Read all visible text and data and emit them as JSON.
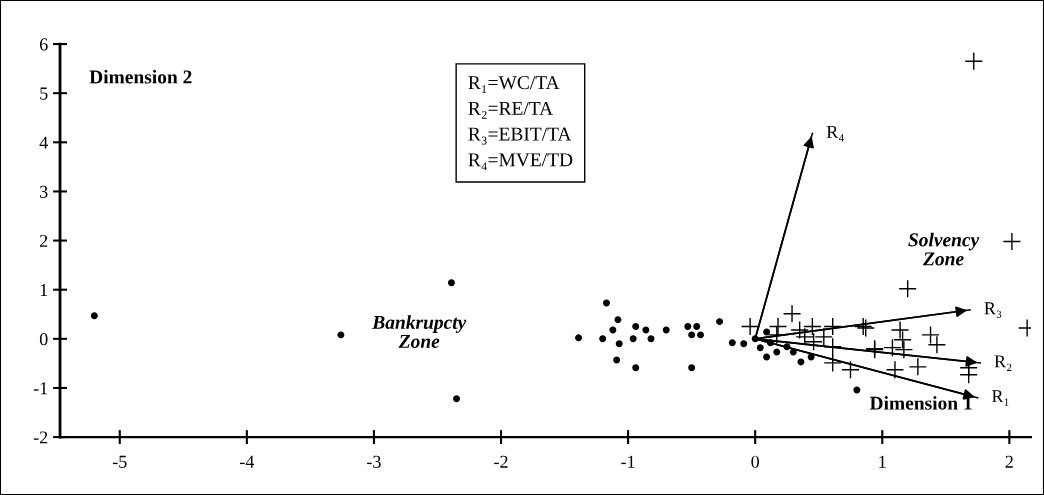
{
  "chart_data": {
    "type": "scatter",
    "xlabel": "Dimension 1",
    "ylabel": "Dimension 2",
    "xlim": [
      -5.47,
      2.17
    ],
    "xticks": [
      -5,
      -4,
      -3,
      -2,
      -1,
      0,
      1,
      2
    ],
    "ylim": [
      -2,
      6
    ],
    "yticks": [
      -2,
      -1,
      0,
      1,
      2,
      3,
      4,
      5,
      6
    ],
    "grid": false,
    "legend": "right",
    "annotations": [
      "R₁=WC/TA\nR₂=RE/TA\nR₃=EBIT/TA\nR₄=MVE/TD",
      "Bankrupcty\nZone",
      "Solvency\nZone"
    ],
    "series": [
      {
        "marker": "circle",
        "color": "#000000",
        "x": [
          -5.2,
          -3.26,
          -2.39,
          -2.35,
          -1.39,
          -1.17,
          -1.2,
          -1.08,
          -1.12,
          -1.07,
          -1.09,
          -0.94,
          -0.96,
          -0.94,
          -0.86,
          -0.82,
          -0.7,
          -0.53,
          -0.46,
          -0.5,
          -0.43,
          -0.5,
          -0.28,
          -0.18,
          -0.09,
          0,
          0.09,
          0.04,
          0.09,
          0.12,
          0.17,
          0.25,
          0.3,
          0.36,
          0.44,
          0.8
        ],
        "values": [
          0.47,
          0.08,
          1.14,
          -1.22,
          0.02,
          0.73,
          0,
          0.39,
          0.18,
          -0.1,
          -0.43,
          0.25,
          0,
          -0.59,
          0.18,
          0,
          0.18,
          0.25,
          0.25,
          0.08,
          0.08,
          -0.59,
          0.35,
          -0.08,
          -0.1,
          0,
          0.14,
          -0.18,
          -0.37,
          -0.08,
          -0.27,
          -0.16,
          -0.27,
          -0.47,
          -0.37,
          -1.04
        ]
      },
      {
        "marker": "cross",
        "color": "#000000",
        "x": [
          -0.04,
          0.29,
          0.18,
          0.17,
          0.35,
          0.45,
          0.39,
          0.46,
          0.54,
          0.61,
          0.61,
          0.61,
          0.75,
          0.85,
          0.94,
          1.72,
          2.02,
          1.2,
          2.14,
          0.87,
          1.14,
          1.16,
          1.38,
          1.43,
          0.94,
          1.08,
          1.17,
          1.1,
          1.28,
          1.68,
          1.68
        ],
        "values": [
          0.25,
          0.51,
          0.25,
          0.08,
          0.18,
          0.25,
          0.04,
          -0.06,
          0.04,
          0.25,
          -0.16,
          -0.49,
          -0.63,
          0.25,
          -0.2,
          5.65,
          1.98,
          1.02,
          0.22,
          0.22,
          0.18,
          -0.02,
          0.08,
          -0.12,
          -0.22,
          -0.18,
          -0.22,
          -0.63,
          -0.57,
          -0.59,
          -0.73
        ]
      },
      {
        "type": "line",
        "name": "R₁",
        "color": "#000000",
        "x": [
          0,
          1.75
        ],
        "values": [
          0,
          -1.2
        ]
      },
      {
        "type": "line",
        "name": "R₂",
        "color": "#000000",
        "x": [
          0,
          1.77
        ],
        "values": [
          0,
          -0.49
        ]
      },
      {
        "type": "line",
        "name": "R₃",
        "color": "#000000",
        "x": [
          0,
          1.69
        ],
        "values": [
          0,
          0.59
        ]
      },
      {
        "type": "line",
        "name": "R₄",
        "color": "#000000",
        "x": [
          0,
          0.45
        ],
        "values": [
          0,
          4.18
        ]
      }
    ]
  }
}
